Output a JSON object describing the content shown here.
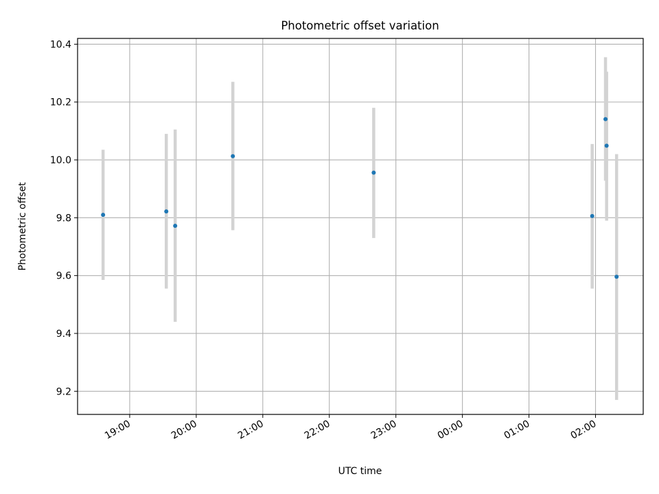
{
  "chart_data": {
    "type": "scatter",
    "title": "Photometric offset variation",
    "xlabel": "UTC time",
    "ylabel": "Photometric offset",
    "x_ticks": [
      "19:00",
      "20:00",
      "21:00",
      "22:00",
      "23:00",
      "00:00",
      "01:00",
      "02:00"
    ],
    "y_ticks": [
      9.2,
      9.4,
      9.6,
      9.8,
      10.0,
      10.2,
      10.4
    ],
    "xlim": [
      "18:13",
      "02:43"
    ],
    "ylim": [
      9.12,
      10.42
    ],
    "grid": true,
    "colors": {
      "marker": "#1f77b4",
      "errorbar": "#d3d3d3",
      "grid": "#b0b0b0"
    },
    "points": [
      {
        "t": "18:36",
        "y": 9.81,
        "ylow": 9.585,
        "yhigh": 10.035
      },
      {
        "t": "19:33",
        "y": 9.822,
        "ylow": 9.555,
        "yhigh": 10.09
      },
      {
        "t": "19:41",
        "y": 9.772,
        "ylow": 9.44,
        "yhigh": 10.105
      },
      {
        "t": "20:33",
        "y": 10.013,
        "ylow": 9.757,
        "yhigh": 10.27
      },
      {
        "t": "22:40",
        "y": 9.956,
        "ylow": 9.73,
        "yhigh": 10.18
      },
      {
        "t": "01:57",
        "y": 9.806,
        "ylow": 9.555,
        "yhigh": 10.055
      },
      {
        "t": "02:09",
        "y": 10.141,
        "ylow": 9.928,
        "yhigh": 10.355
      },
      {
        "t": "02:10",
        "y": 10.049,
        "ylow": 9.79,
        "yhigh": 10.305
      },
      {
        "t": "02:19",
        "y": 9.596,
        "ylow": 9.17,
        "yhigh": 10.02
      }
    ]
  }
}
